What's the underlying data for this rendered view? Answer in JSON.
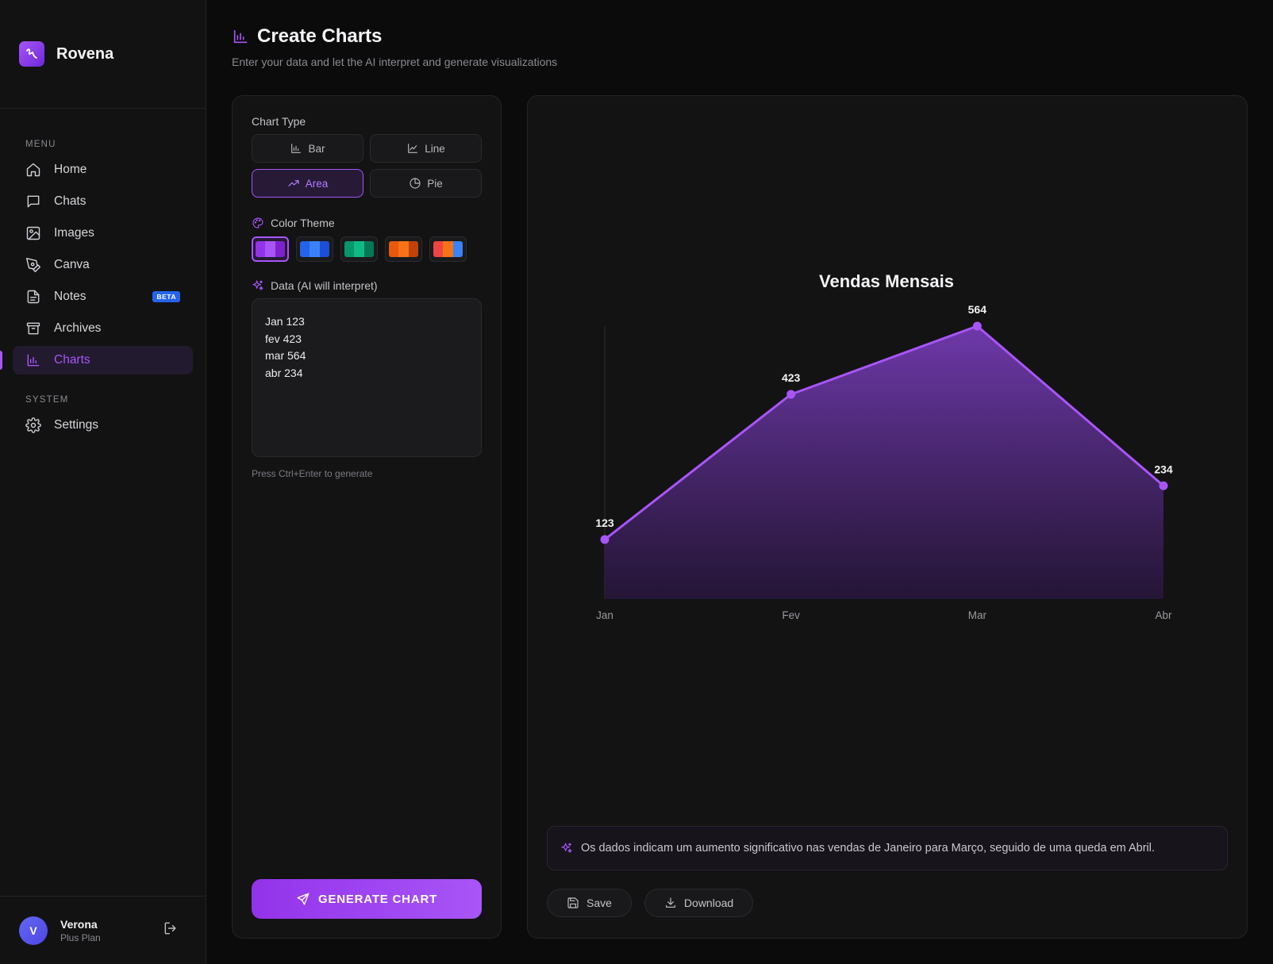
{
  "brand": {
    "name": "Rovena",
    "accent": "#a855f7"
  },
  "sidebar": {
    "menu_label": "MENU",
    "items": [
      {
        "label": "Home",
        "icon": "home-icon"
      },
      {
        "label": "Chats",
        "icon": "chat-icon"
      },
      {
        "label": "Images",
        "icon": "image-icon"
      },
      {
        "label": "Canva",
        "icon": "pen-icon"
      },
      {
        "label": "Notes",
        "icon": "note-icon",
        "badge": "BETA"
      },
      {
        "label": "Archives",
        "icon": "archive-icon"
      },
      {
        "label": "Charts",
        "icon": "chart-icon",
        "active": true
      }
    ],
    "system_label": "SYSTEM",
    "system_items": [
      {
        "label": "Settings",
        "icon": "gear-icon"
      }
    ]
  },
  "user": {
    "initial": "V",
    "name": "Verona",
    "plan": "Plus Plan"
  },
  "page": {
    "title": "Create Charts",
    "subtitle": "Enter your data and let the AI interpret and generate visualizations"
  },
  "controls": {
    "chart_type_label": "Chart Type",
    "types": [
      {
        "label": "Bar",
        "icon": "bar-chart-icon"
      },
      {
        "label": "Line",
        "icon": "line-chart-icon"
      },
      {
        "label": "Area",
        "icon": "trending-up-icon",
        "selected": true
      },
      {
        "label": "Pie",
        "icon": "pie-chart-icon"
      }
    ],
    "color_theme_label": "Color Theme",
    "themes": [
      {
        "name": "purple",
        "colors": [
          "#9333ea",
          "#a855f7",
          "#7e22ce"
        ],
        "selected": true
      },
      {
        "name": "blue",
        "colors": [
          "#2563eb",
          "#3b82f6",
          "#1d4ed8"
        ]
      },
      {
        "name": "green",
        "colors": [
          "#059669",
          "#10b981",
          "#047857"
        ]
      },
      {
        "name": "orange",
        "colors": [
          "#ea580c",
          "#f97316",
          "#c2410c"
        ]
      },
      {
        "name": "mixed",
        "colors": [
          "#ef4444",
          "#f97316",
          "#3b82f6"
        ]
      }
    ],
    "data_label": "Data (AI will interpret)",
    "data_value": "Jan 123\nfev 423\nmar 564\nabr 234",
    "hint": "Press Ctrl+Enter to generate",
    "generate_label": "GENERATE CHART"
  },
  "chart_data": {
    "type": "area",
    "title": "Vendas Mensais",
    "categories": [
      "Jan",
      "Fev",
      "Mar",
      "Abr"
    ],
    "values": [
      123,
      423,
      564,
      234
    ],
    "xlabel": "",
    "ylabel": "",
    "ylim": [
      0,
      564
    ],
    "color": "#a855f7"
  },
  "insight": {
    "text": "Os dados indicam um aumento significativo nas vendas de Janeiro para Março, seguido de uma queda em Abril."
  },
  "actions": {
    "save_label": "Save",
    "download_label": "Download"
  }
}
